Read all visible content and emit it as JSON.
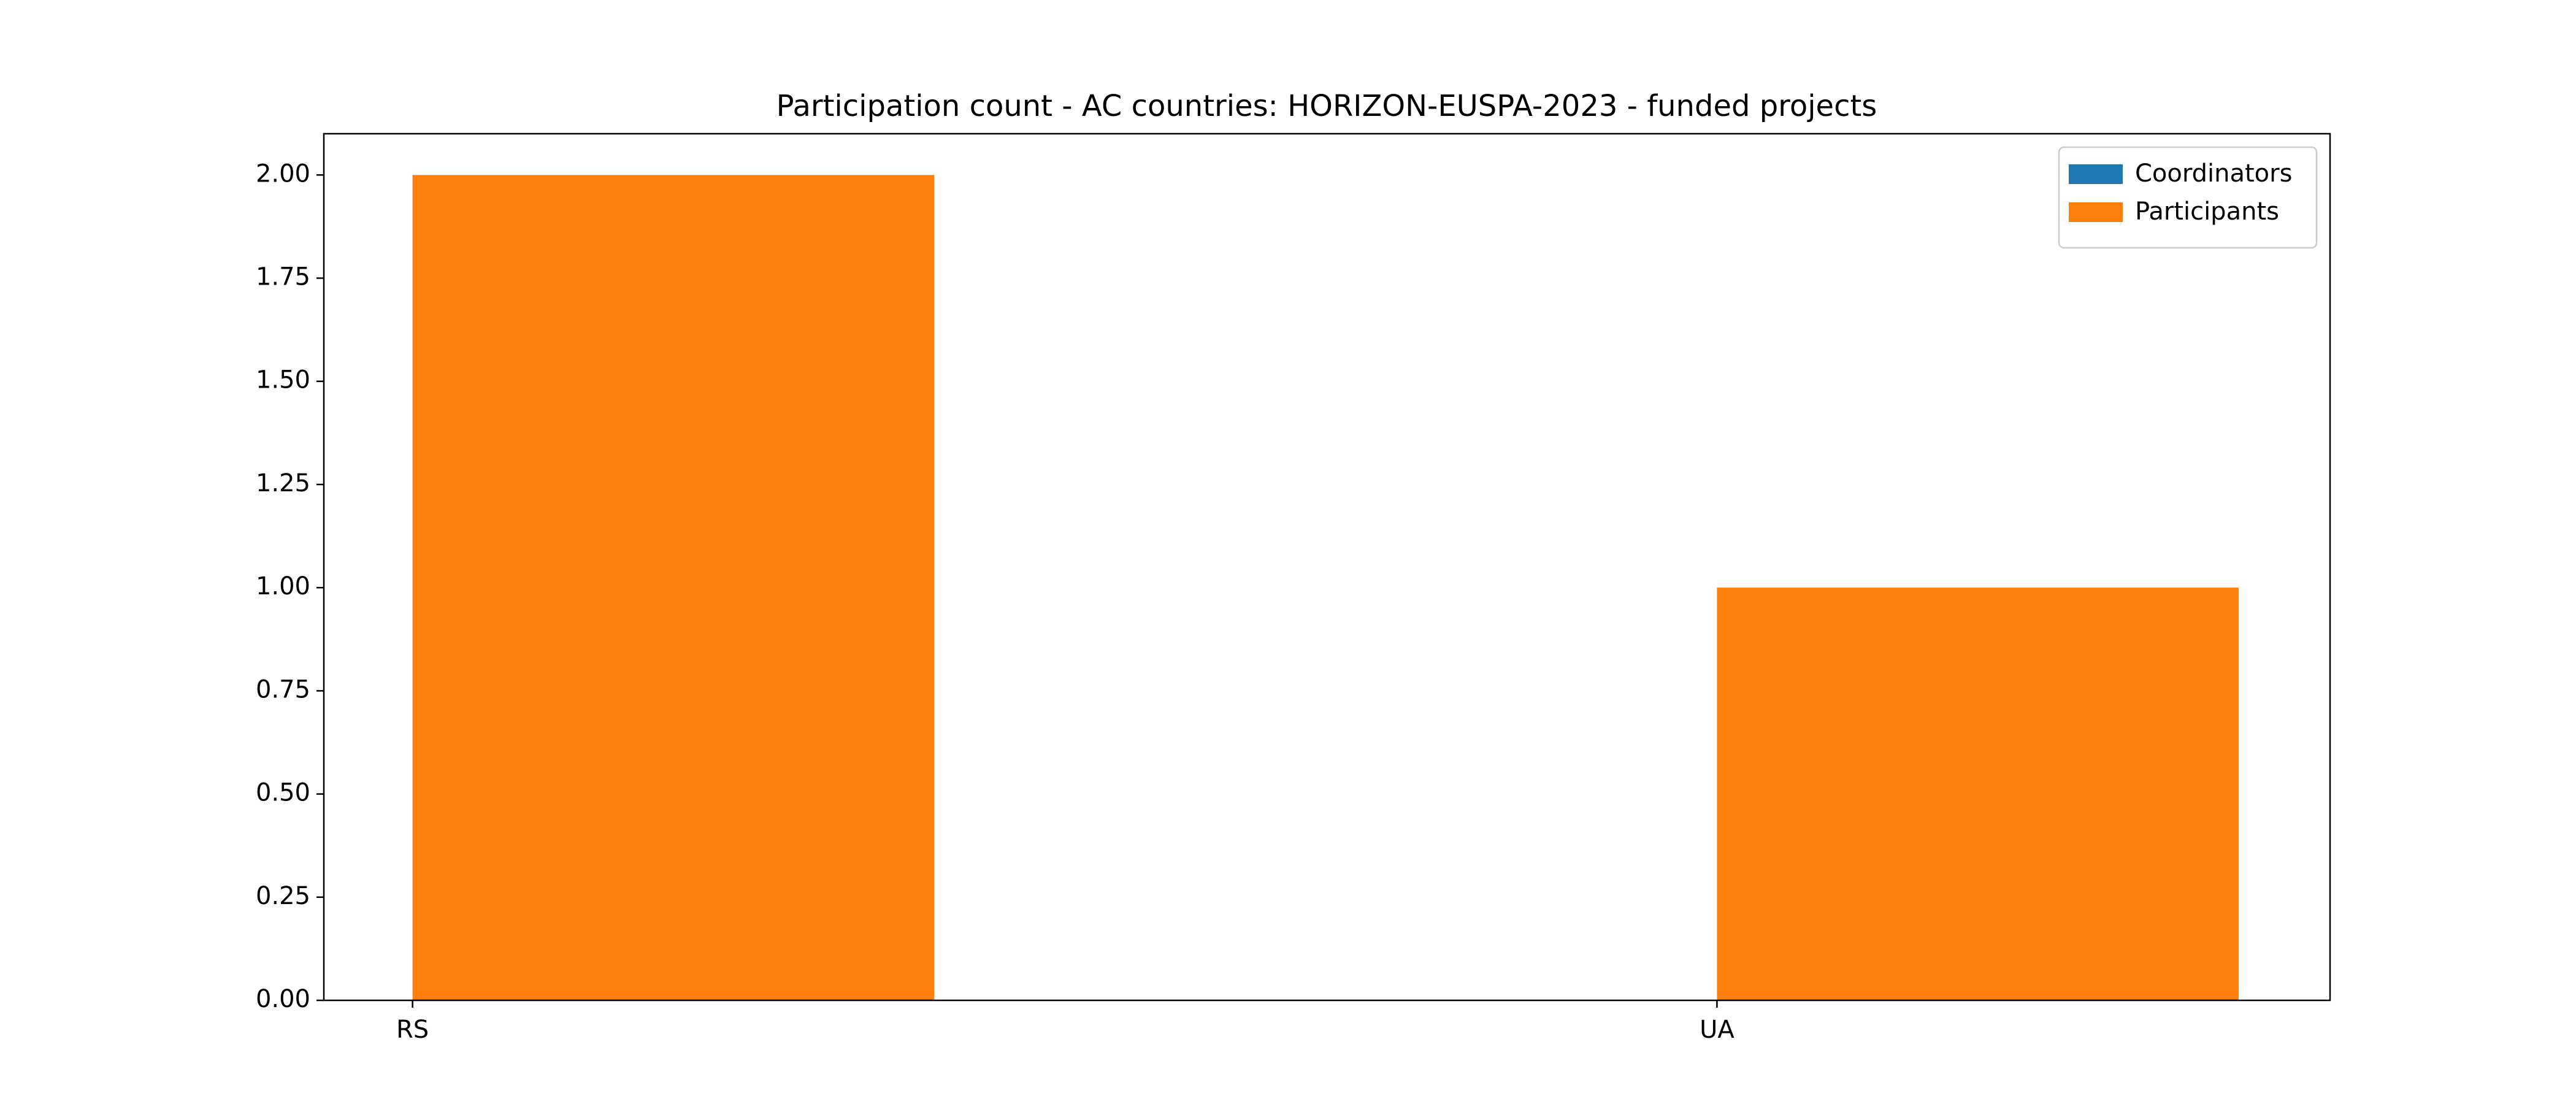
{
  "chart_data": {
    "type": "bar",
    "title": "Participation count - AC countries: HORIZON-EUSPA-2023 - funded projects",
    "categories": [
      "RS",
      "UA"
    ],
    "series": [
      {
        "name": "Coordinators",
        "color": "#1f77b4",
        "values": [
          0,
          0
        ]
      },
      {
        "name": "Participants",
        "color": "#ff7f0e",
        "values": [
          2,
          1
        ]
      }
    ],
    "ylim": [
      0,
      2.1
    ],
    "yticks": [
      {
        "value": 0,
        "label": "0.00"
      },
      {
        "value": 0.25,
        "label": "0.25"
      },
      {
        "value": 0.5,
        "label": "0.50"
      },
      {
        "value": 0.75,
        "label": "0.75"
      },
      {
        "value": 1,
        "label": "1.00"
      },
      {
        "value": 1.25,
        "label": "1.25"
      },
      {
        "value": 1.5,
        "label": "1.50"
      },
      {
        "value": 1.75,
        "label": "1.75"
      },
      {
        "value": 2,
        "label": "2.00"
      }
    ],
    "legend": "upper right"
  }
}
